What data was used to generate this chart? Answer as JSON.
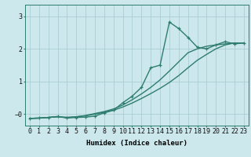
{
  "title": "",
  "xlabel": "Humidex (Indice chaleur)",
  "ylabel": "",
  "bg_color": "#cce8ec",
  "grid_color": "#aacdd4",
  "line_color": "#2e7d6e",
  "xlim": [
    -0.5,
    23.5
  ],
  "ylim": [
    -0.35,
    3.35
  ],
  "xticks": [
    0,
    1,
    2,
    3,
    4,
    5,
    6,
    7,
    8,
    9,
    10,
    11,
    12,
    13,
    14,
    15,
    16,
    17,
    18,
    19,
    20,
    21,
    22,
    23
  ],
  "yticks": [
    0,
    1,
    2,
    3
  ],
  "series1_x": [
    0,
    1,
    2,
    3,
    4,
    5,
    6,
    7,
    8,
    9,
    10,
    11,
    12,
    13,
    14,
    15,
    16,
    17,
    18,
    19,
    20,
    21,
    22,
    23
  ],
  "series1_y": [
    -0.13,
    -0.12,
    -0.1,
    -0.07,
    -0.12,
    -0.1,
    -0.09,
    -0.06,
    0.04,
    0.12,
    0.35,
    0.55,
    0.82,
    1.42,
    1.5,
    2.82,
    2.62,
    2.35,
    2.05,
    2.0,
    2.12,
    2.22,
    2.15,
    2.18
  ],
  "series2_x": [
    0,
    1,
    2,
    3,
    4,
    5,
    6,
    7,
    8,
    9,
    10,
    11,
    12,
    13,
    14,
    15,
    16,
    17,
    18,
    19,
    20,
    21,
    22,
    23
  ],
  "series2_y": [
    -0.13,
    -0.12,
    -0.1,
    -0.08,
    -0.1,
    -0.08,
    -0.05,
    0.0,
    0.06,
    0.12,
    0.22,
    0.34,
    0.48,
    0.63,
    0.79,
    0.97,
    1.18,
    1.42,
    1.65,
    1.83,
    2.0,
    2.12,
    2.18,
    2.18
  ],
  "series3_x": [
    0,
    1,
    2,
    3,
    4,
    5,
    6,
    7,
    8,
    9,
    10,
    11,
    12,
    13,
    14,
    15,
    16,
    17,
    18,
    19,
    20,
    21,
    22,
    23
  ],
  "series3_y": [
    -0.13,
    -0.12,
    -0.1,
    -0.08,
    -0.1,
    -0.08,
    -0.04,
    0.02,
    0.08,
    0.16,
    0.28,
    0.44,
    0.62,
    0.82,
    1.05,
    1.32,
    1.6,
    1.88,
    2.0,
    2.08,
    2.12,
    2.15,
    2.18,
    2.18
  ],
  "marker_size": 3.0,
  "line_width": 1.0,
  "font_size_axis": 6.5,
  "font_size_ticks": 6.0
}
